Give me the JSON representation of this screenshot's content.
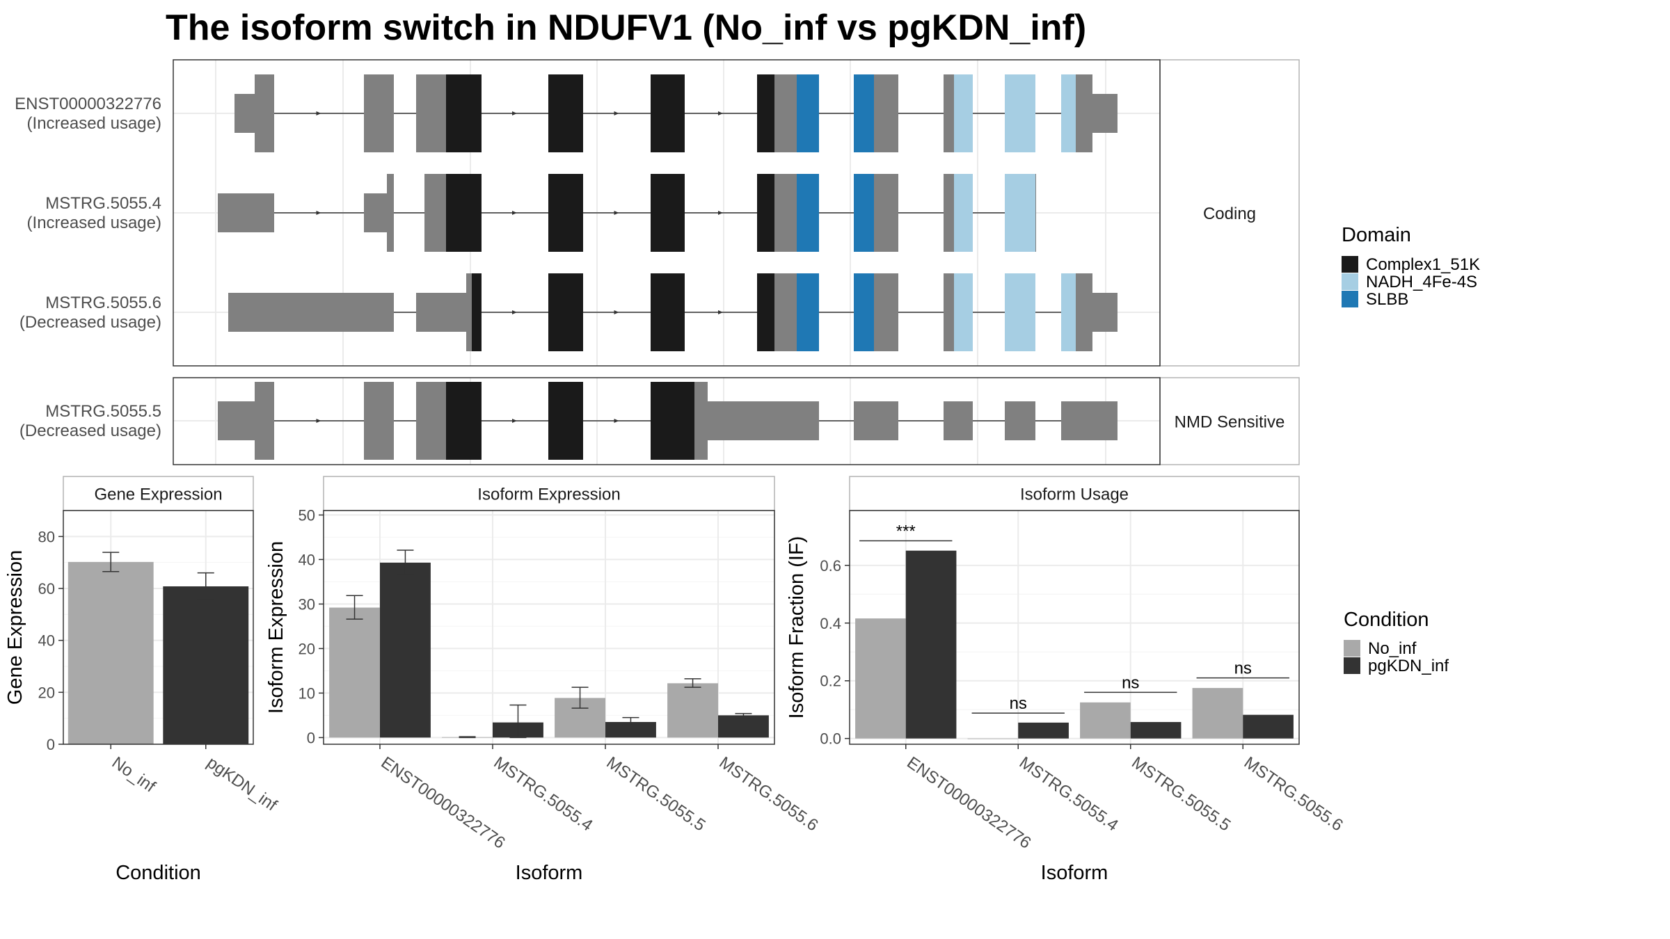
{
  "title": "The isoform switch in NDUFV1 (No_inf vs pgKDN_inf)",
  "colors": {
    "Complex1_51K": "#1a1a1a",
    "NADH_4Fe-4S": "#a6cee3",
    "SLBB": "#1f78b4",
    "none": "#808080",
    "No_inf": "#a9a9a9",
    "pgKDN_inf": "#333333"
  },
  "structure": {
    "facets": [
      {
        "label": "Coding",
        "transcripts": [
          {
            "name": "ENST00000322776",
            "usage": "(Increased usage)"
          },
          {
            "name": "MSTRG.5055.4",
            "usage": "(Increased usage)"
          },
          {
            "name": "MSTRG.5055.6",
            "usage": "(Decreased usage)"
          }
        ]
      },
      {
        "label": "NMD Sensitive",
        "transcripts": [
          {
            "name": "MSTRG.5055.5",
            "usage": "(Decreased usage)"
          }
        ]
      }
    ],
    "legend": {
      "title": "Domain",
      "items": [
        {
          "label": "Complex1_51K",
          "color": "#1a1a1a"
        },
        {
          "label": "NADH_4Fe-4S",
          "color": "#a6cee3"
        },
        {
          "label": "SLBB",
          "color": "#1f78b4"
        }
      ]
    }
  },
  "chart_data": [
    {
      "type": "bar",
      "title": "Gene Expression",
      "xlabel": "Condition",
      "ylabel": "Gene Expression",
      "categories": [
        "No_inf",
        "pgKDN_inf"
      ],
      "values": [
        70.2,
        60.8
      ],
      "errors": [
        [
          66.5,
          73.9
        ],
        [
          55.7,
          66.0
        ]
      ],
      "ylim": [
        0,
        90
      ],
      "yticks": [
        0,
        20,
        40,
        60,
        80
      ],
      "grid": true
    },
    {
      "type": "bar",
      "title": "Isoform Expression",
      "xlabel": "Isoform",
      "ylabel": "Isoform Expression",
      "categories": [
        "ENST00000322776",
        "MSTRG.5055.4",
        "MSTRG.5055.5",
        "MSTRG.5055.6"
      ],
      "series": [
        {
          "name": "No_inf",
          "values": [
            29.2,
            0.1,
            8.9,
            12.2
          ],
          "errors": [
            [
              26.6,
              31.9
            ],
            [
              0.0,
              0.2
            ],
            [
              6.6,
              11.3
            ],
            [
              11.3,
              13.2
            ]
          ]
        },
        {
          "name": "pgKDN_inf",
          "values": [
            39.3,
            3.4,
            3.5,
            5.0
          ],
          "errors": [
            [
              36.6,
              42.1
            ],
            [
              0.0,
              7.3
            ],
            [
              2.6,
              4.5
            ],
            [
              4.5,
              5.4
            ]
          ]
        }
      ],
      "ylim": [
        -1.5,
        51
      ],
      "yticks": [
        0,
        10,
        20,
        30,
        40,
        50
      ],
      "grid": true
    },
    {
      "type": "bar",
      "title": "Isoform Usage",
      "xlabel": "Isoform",
      "ylabel": "Isoform Fraction (IF)",
      "categories": [
        "ENST00000322776",
        "MSTRG.5055.4",
        "MSTRG.5055.5",
        "MSTRG.5055.6"
      ],
      "series": [
        {
          "name": "No_inf",
          "values": [
            0.416,
            0.0,
            0.125,
            0.175
          ]
        },
        {
          "name": "pgKDN_inf",
          "values": [
            0.651,
            0.055,
            0.057,
            0.082
          ]
        }
      ],
      "annotations": [
        {
          "category": "ENST00000322776",
          "label": "***",
          "y": 0.685
        },
        {
          "category": "MSTRG.5055.4",
          "label": "ns",
          "y": 0.088
        },
        {
          "category": "MSTRG.5055.5",
          "label": "ns",
          "y": 0.16
        },
        {
          "category": "MSTRG.5055.6",
          "label": "ns",
          "y": 0.21
        }
      ],
      "ylim": [
        -0.02,
        0.79
      ],
      "yticks": [
        0.0,
        0.2,
        0.4,
        0.6
      ],
      "ytick_labels": [
        "0.0",
        "0.2",
        "0.4",
        "0.6"
      ],
      "grid": true
    }
  ],
  "condition_legend": {
    "title": "Condition",
    "items": [
      {
        "label": "No_inf",
        "color": "#a9a9a9"
      },
      {
        "label": "pgKDN_inf",
        "color": "#333333"
      }
    ]
  }
}
